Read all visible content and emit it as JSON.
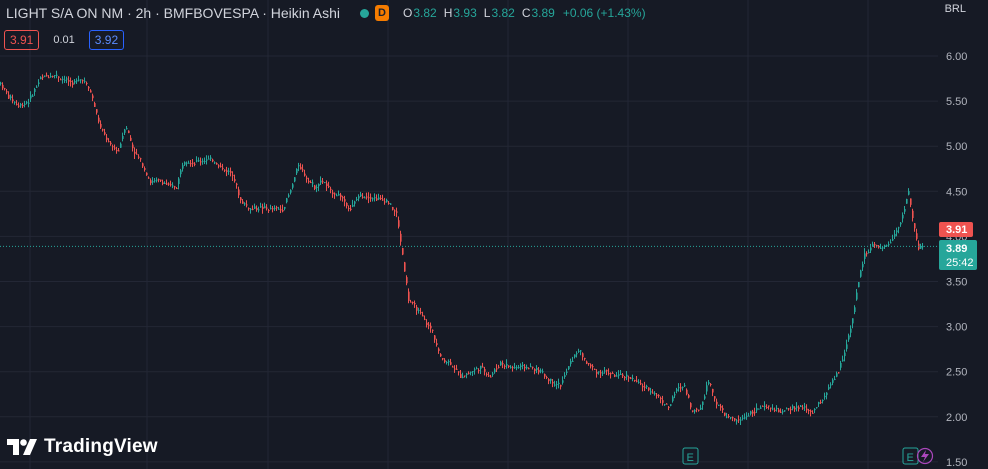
{
  "header": {
    "symbol": "LIGHT S/A ON NM · 2h · BMFBOVESPA · Heikin Ashi",
    "d_badge": "D",
    "ohlc": {
      "o_label": "O",
      "o": "3.82",
      "h_label": "H",
      "h": "3.93",
      "l_label": "L",
      "l": "3.82",
      "c_label": "C",
      "c": "3.89",
      "change": "+0.06 (+1.43%)"
    }
  },
  "quote": {
    "bid": "3.91",
    "spread": "0.01",
    "ask": "3.92"
  },
  "currency": "BRL",
  "brand": "TradingView",
  "price_tags": {
    "high": "3.91",
    "last": "3.89",
    "countdown": "25:42"
  },
  "earnings_marker": "E",
  "colors": {
    "up": "#26a69a",
    "down": "#ef5350",
    "bg": "#161a25",
    "grid": "#232735",
    "axis_text": "#b2b5be",
    "ask": "#2962ff",
    "badge": "#f57c00"
  },
  "icons": [
    "lightning-icon"
  ],
  "chart_data": {
    "type": "candlestick",
    "style": "Heikin Ashi",
    "timeframe": "2h",
    "ylim": [
      1.5,
      6.1
    ],
    "yticks": [
      6.0,
      5.5,
      5.0,
      4.5,
      4.0,
      3.5,
      3.0,
      2.5,
      2.0,
      1.5
    ],
    "last_price": 3.89,
    "grid": true,
    "price_path": [
      [
        0,
        5.7
      ],
      [
        8,
        5.55
      ],
      [
        18,
        5.45
      ],
      [
        28,
        5.5
      ],
      [
        40,
        5.75
      ],
      [
        52,
        5.8
      ],
      [
        62,
        5.75
      ],
      [
        72,
        5.7
      ],
      [
        82,
        5.75
      ],
      [
        90,
        5.6
      ],
      [
        100,
        5.2
      ],
      [
        110,
        5.0
      ],
      [
        118,
        4.95
      ],
      [
        125,
        5.25
      ],
      [
        133,
        4.95
      ],
      [
        142,
        4.8
      ],
      [
        150,
        4.6
      ],
      [
        160,
        4.62
      ],
      [
        170,
        4.55
      ],
      [
        176,
        4.55
      ],
      [
        183,
        4.85
      ],
      [
        193,
        4.82
      ],
      [
        203,
        4.85
      ],
      [
        213,
        4.85
      ],
      [
        222,
        4.75
      ],
      [
        232,
        4.7
      ],
      [
        240,
        4.4
      ],
      [
        250,
        4.3
      ],
      [
        260,
        4.32
      ],
      [
        270,
        4.3
      ],
      [
        282,
        4.3
      ],
      [
        290,
        4.5
      ],
      [
        298,
        4.8
      ],
      [
        306,
        4.65
      ],
      [
        314,
        4.55
      ],
      [
        322,
        4.62
      ],
      [
        330,
        4.5
      ],
      [
        340,
        4.45
      ],
      [
        350,
        4.3
      ],
      [
        358,
        4.45
      ],
      [
        368,
        4.45
      ],
      [
        376,
        4.42
      ],
      [
        386,
        4.4
      ],
      [
        396,
        4.25
      ],
      [
        402,
        3.8
      ],
      [
        408,
        3.3
      ],
      [
        416,
        3.2
      ],
      [
        425,
        3.05
      ],
      [
        432,
        2.95
      ],
      [
        440,
        2.65
      ],
      [
        450,
        2.6
      ],
      [
        460,
        2.45
      ],
      [
        470,
        2.5
      ],
      [
        480,
        2.55
      ],
      [
        490,
        2.45
      ],
      [
        500,
        2.6
      ],
      [
        510,
        2.55
      ],
      [
        520,
        2.55
      ],
      [
        530,
        2.55
      ],
      [
        540,
        2.5
      ],
      [
        550,
        2.4
      ],
      [
        560,
        2.35
      ],
      [
        570,
        2.6
      ],
      [
        578,
        2.75
      ],
      [
        586,
        2.6
      ],
      [
        596,
        2.5
      ],
      [
        606,
        2.5
      ],
      [
        616,
        2.45
      ],
      [
        628,
        2.45
      ],
      [
        640,
        2.35
      ],
      [
        650,
        2.3
      ],
      [
        660,
        2.2
      ],
      [
        668,
        2.1
      ],
      [
        676,
        2.3
      ],
      [
        684,
        2.35
      ],
      [
        692,
        2.05
      ],
      [
        700,
        2.1
      ],
      [
        708,
        2.4
      ],
      [
        716,
        2.15
      ],
      [
        726,
        2.0
      ],
      [
        738,
        1.95
      ],
      [
        750,
        2.05
      ],
      [
        760,
        2.1
      ],
      [
        770,
        2.1
      ],
      [
        782,
        2.05
      ],
      [
        792,
        2.1
      ],
      [
        802,
        2.1
      ],
      [
        812,
        2.05
      ],
      [
        822,
        2.2
      ],
      [
        830,
        2.35
      ],
      [
        838,
        2.5
      ],
      [
        846,
        2.8
      ],
      [
        852,
        3.1
      ],
      [
        858,
        3.5
      ],
      [
        864,
        3.8
      ],
      [
        872,
        3.9
      ],
      [
        880,
        3.85
      ],
      [
        890,
        3.95
      ],
      [
        900,
        4.15
      ],
      [
        908,
        4.5
      ],
      [
        912,
        4.2
      ],
      [
        918,
        3.85
      ],
      [
        922,
        3.89
      ]
    ],
    "earnings_events": [
      2,
      2
    ]
  }
}
